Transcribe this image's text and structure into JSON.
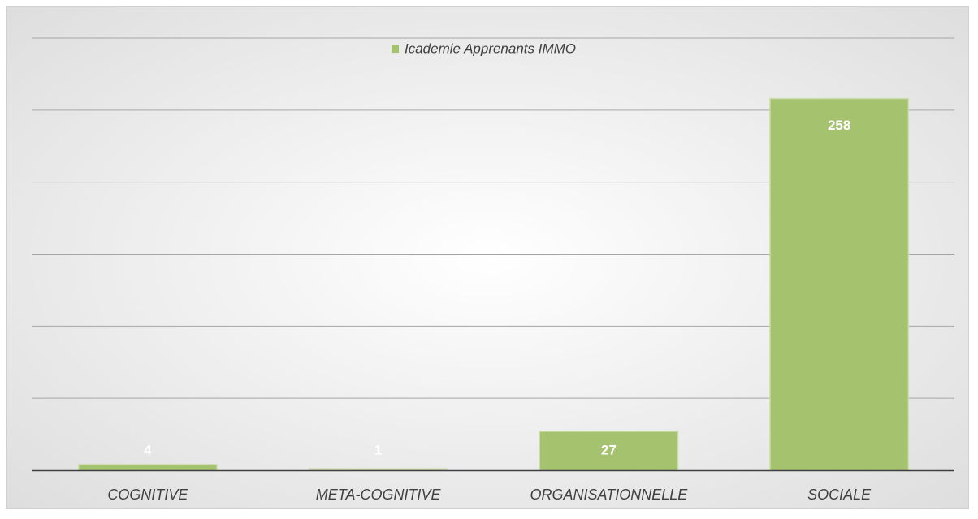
{
  "chart_data": {
    "type": "bar",
    "categories": [
      "COGNITIVE",
      "META-COGNITIVE",
      "ORGANISATIONNELLE",
      "SOCIALE"
    ],
    "series": [
      {
        "name": "Icademie Apprenants IMMO",
        "color": "#a5c26e",
        "values": [
          4,
          1,
          27,
          258
        ]
      }
    ],
    "ylim": [
      0,
      300
    ],
    "yticks": [
      0,
      50,
      100,
      150,
      200,
      250,
      300
    ],
    "grid": true,
    "legend": "top"
  }
}
